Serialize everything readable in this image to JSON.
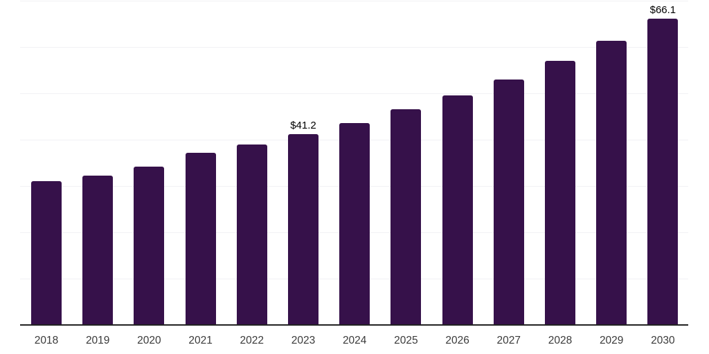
{
  "chart_data": {
    "type": "bar",
    "title": "",
    "xlabel": "",
    "ylabel": "",
    "categories": [
      "2018",
      "2019",
      "2020",
      "2021",
      "2022",
      "2023",
      "2024",
      "2025",
      "2026",
      "2027",
      "2028",
      "2029",
      "2030"
    ],
    "values": [
      31.0,
      32.2,
      34.2,
      37.2,
      39.0,
      41.2,
      43.6,
      46.5,
      49.6,
      53.0,
      57.0,
      61.3,
      66.1
    ],
    "labeled_points": [
      {
        "category": "2023",
        "label": "$41.2"
      },
      {
        "category": "2030",
        "label": "$66.1"
      }
    ],
    "ylim": [
      0,
      70
    ],
    "gridline_step": 10,
    "grid": "horizontal",
    "legend": "none",
    "y_axis_labels_visible": false,
    "colors": {
      "bar": "#36114a",
      "axis": "#222222",
      "gridline": "#f1f1f4",
      "tick_label": "#3a3a3a",
      "data_label": "#000000",
      "background": "#ffffff"
    }
  }
}
